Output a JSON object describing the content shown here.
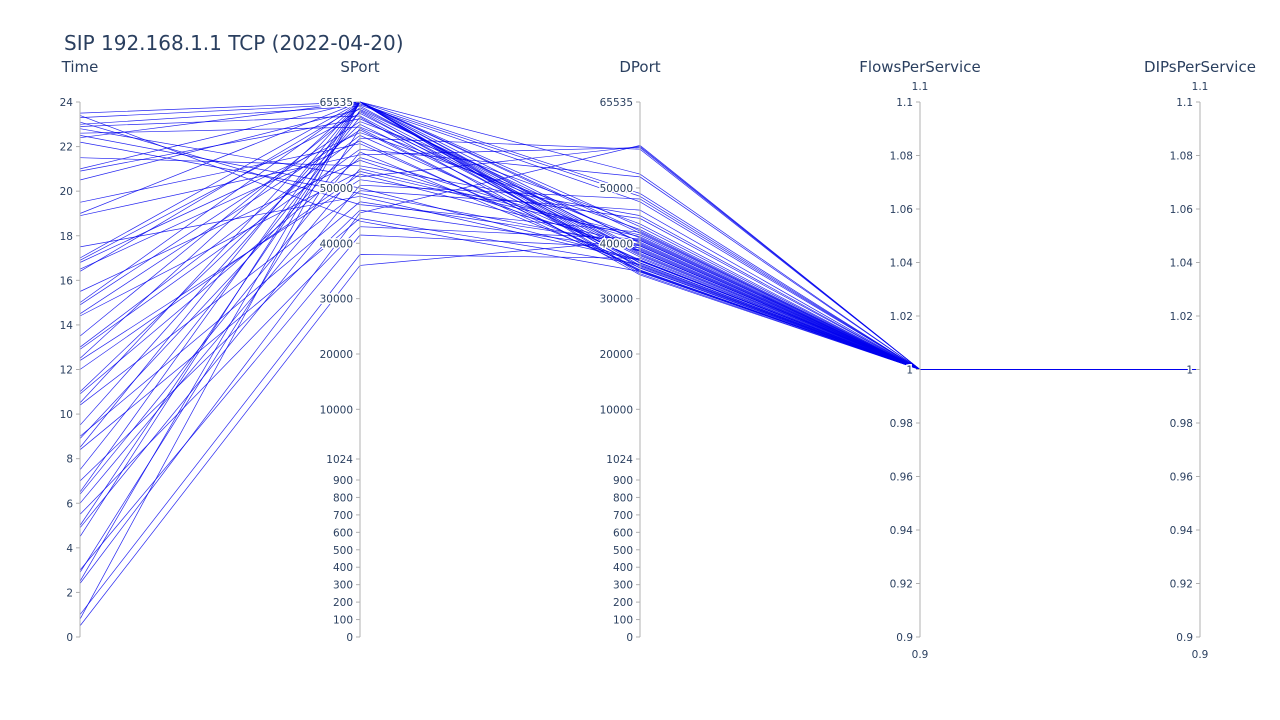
{
  "chart_data": {
    "type": "parallel_coordinates",
    "title": "SIP 192.168.1.1 TCP (2022-04-20)",
    "line_color": "#0000ee",
    "axes": [
      {
        "key": "Time",
        "label": "Time",
        "scale": "linear",
        "range": [
          0,
          24
        ],
        "ticks": [
          {
            "v": 0,
            "t": "0"
          },
          {
            "v": 2,
            "t": "2"
          },
          {
            "v": 4,
            "t": "4"
          },
          {
            "v": 6,
            "t": "6"
          },
          {
            "v": 8,
            "t": "8"
          },
          {
            "v": 10,
            "t": "10"
          },
          {
            "v": 12,
            "t": "12"
          },
          {
            "v": 14,
            "t": "14"
          },
          {
            "v": 16,
            "t": "16"
          },
          {
            "v": 18,
            "t": "18"
          },
          {
            "v": 20,
            "t": "20"
          },
          {
            "v": 22,
            "t": "22"
          },
          {
            "v": 24,
            "t": "24"
          }
        ]
      },
      {
        "key": "SPort",
        "label": "SPort",
        "scale": "port",
        "range": [
          0,
          65535
        ],
        "ticks": [
          {
            "v": 0,
            "t": "0"
          },
          {
            "v": 100,
            "t": "100"
          },
          {
            "v": 200,
            "t": "200"
          },
          {
            "v": 300,
            "t": "300"
          },
          {
            "v": 400,
            "t": "400"
          },
          {
            "v": 500,
            "t": "500"
          },
          {
            "v": 600,
            "t": "600"
          },
          {
            "v": 700,
            "t": "700"
          },
          {
            "v": 800,
            "t": "800"
          },
          {
            "v": 900,
            "t": "900"
          },
          {
            "v": 1024,
            "t": "1024"
          },
          {
            "v": 10000,
            "t": "10000"
          },
          {
            "v": 20000,
            "t": "20000"
          },
          {
            "v": 30000,
            "t": "30000"
          },
          {
            "v": 40000,
            "t": "40000"
          },
          {
            "v": 50000,
            "t": "50000"
          },
          {
            "v": 65535,
            "t": "65535"
          }
        ]
      },
      {
        "key": "DPort",
        "label": "DPort",
        "scale": "port",
        "range": [
          0,
          65535
        ],
        "ticks": [
          {
            "v": 0,
            "t": "0"
          },
          {
            "v": 100,
            "t": "100"
          },
          {
            "v": 200,
            "t": "200"
          },
          {
            "v": 300,
            "t": "300"
          },
          {
            "v": 400,
            "t": "400"
          },
          {
            "v": 500,
            "t": "500"
          },
          {
            "v": 600,
            "t": "600"
          },
          {
            "v": 700,
            "t": "700"
          },
          {
            "v": 800,
            "t": "800"
          },
          {
            "v": 900,
            "t": "900"
          },
          {
            "v": 1024,
            "t": "1024"
          },
          {
            "v": 10000,
            "t": "10000"
          },
          {
            "v": 20000,
            "t": "20000"
          },
          {
            "v": 30000,
            "t": "30000"
          },
          {
            "v": 40000,
            "t": "40000"
          },
          {
            "v": 50000,
            "t": "50000"
          },
          {
            "v": 65535,
            "t": "65535"
          }
        ]
      },
      {
        "key": "FlowsPerService",
        "label": "FlowsPerService",
        "scale": "linear",
        "range": [
          0.9,
          1.1
        ],
        "range_labels": [
          "0.9",
          "1.1"
        ],
        "ticks": [
          {
            "v": 0.9,
            "t": "0.9"
          },
          {
            "v": 0.92,
            "t": "0.92"
          },
          {
            "v": 0.94,
            "t": "0.94"
          },
          {
            "v": 0.96,
            "t": "0.96"
          },
          {
            "v": 0.98,
            "t": "0.98"
          },
          {
            "v": 1,
            "t": "1"
          },
          {
            "v": 1.02,
            "t": "1.02"
          },
          {
            "v": 1.04,
            "t": "1.04"
          },
          {
            "v": 1.06,
            "t": "1.06"
          },
          {
            "v": 1.08,
            "t": "1.08"
          },
          {
            "v": 1.1,
            "t": "1.1"
          }
        ]
      },
      {
        "key": "DIPsPerService",
        "label": "DIPsPerService",
        "scale": "linear",
        "range": [
          0.9,
          1.1
        ],
        "range_labels": [
          "0.9",
          "1.1"
        ],
        "ticks": [
          {
            "v": 0.9,
            "t": "0.9"
          },
          {
            "v": 0.92,
            "t": "0.92"
          },
          {
            "v": 0.94,
            "t": "0.94"
          },
          {
            "v": 0.96,
            "t": "0.96"
          },
          {
            "v": 0.98,
            "t": "0.98"
          },
          {
            "v": 1,
            "t": "1"
          },
          {
            "v": 1.02,
            "t": "1.02"
          },
          {
            "v": 1.04,
            "t": "1.04"
          },
          {
            "v": 1.06,
            "t": "1.06"
          },
          {
            "v": 1.08,
            "t": "1.08"
          },
          {
            "v": 1.1,
            "t": "1.1"
          }
        ]
      }
    ],
    "records": [
      [
        23.5,
        65535,
        52500,
        1,
        1
      ],
      [
        23.3,
        65200,
        48500,
        1,
        1
      ],
      [
        23.0,
        64800,
        38000,
        1,
        1
      ],
      [
        22.8,
        52000,
        57500,
        1,
        1
      ],
      [
        22.6,
        61000,
        41000,
        1,
        1
      ],
      [
        22.5,
        50000,
        37000,
        1,
        1
      ],
      [
        22.4,
        65535,
        35500,
        1,
        1
      ],
      [
        22.2,
        49000,
        39500,
        1,
        1
      ],
      [
        23.1,
        47000,
        42000,
        1,
        1
      ],
      [
        22.9,
        63000,
        36500,
        1,
        1
      ],
      [
        21.0,
        65535,
        49000,
        1,
        1
      ],
      [
        20.9,
        62500,
        38500,
        1,
        1
      ],
      [
        20.5,
        64200,
        40200,
        1,
        1
      ],
      [
        19.5,
        58000,
        36000,
        1,
        1
      ],
      [
        19.0,
        65535,
        34500,
        1,
        1
      ],
      [
        18.9,
        56000,
        57300,
        1,
        1
      ],
      [
        17.0,
        65535,
        40000,
        1,
        1
      ],
      [
        16.9,
        63500,
        37500,
        1,
        1
      ],
      [
        16.8,
        60000,
        42500,
        1,
        1
      ],
      [
        16.5,
        58500,
        35000,
        1,
        1
      ],
      [
        16.4,
        65000,
        47500,
        1,
        1
      ],
      [
        15.5,
        55000,
        38500,
        1,
        1
      ],
      [
        15.0,
        65535,
        36000,
        1,
        1
      ],
      [
        14.9,
        62000,
        43500,
        1,
        1
      ],
      [
        14.5,
        60500,
        35200,
        1,
        1
      ],
      [
        14.4,
        53000,
        41200,
        1,
        1
      ],
      [
        13.5,
        64500,
        39000,
        1,
        1
      ],
      [
        13.0,
        59500,
        37000,
        1,
        1
      ],
      [
        12.9,
        57000,
        52000,
        1,
        1
      ],
      [
        12.5,
        65535,
        34800,
        1,
        1
      ],
      [
        12.4,
        51500,
        44500,
        1,
        1
      ],
      [
        11.0,
        61500,
        36800,
        1,
        1
      ],
      [
        10.9,
        55500,
        40500,
        1,
        1
      ],
      [
        10.5,
        65535,
        38200,
        1,
        1
      ],
      [
        10.4,
        49500,
        46000,
        1,
        1
      ],
      [
        9.5,
        63800,
        35800,
        1,
        1
      ],
      [
        9.0,
        47500,
        39800,
        1,
        1
      ],
      [
        8.9,
        59000,
        57000,
        1,
        1
      ],
      [
        8.5,
        65535,
        41800,
        1,
        1
      ],
      [
        8.4,
        44500,
        36200,
        1,
        1
      ],
      [
        7.5,
        62800,
        34300,
        1,
        1
      ],
      [
        7.0,
        46000,
        38800,
        1,
        1
      ],
      [
        6.5,
        65535,
        43000,
        1,
        1
      ],
      [
        6.4,
        56500,
        35600,
        1,
        1
      ],
      [
        5.5,
        43000,
        40800,
        1,
        1
      ],
      [
        5.0,
        64000,
        37800,
        1,
        1
      ],
      [
        4.9,
        50500,
        48000,
        1,
        1
      ],
      [
        4.5,
        65535,
        36400,
        1,
        1
      ],
      [
        3.0,
        41500,
        39200,
        1,
        1
      ],
      [
        2.9,
        60800,
        35100,
        1,
        1
      ],
      [
        2.5,
        65535,
        42200,
        1,
        1
      ],
      [
        2.4,
        45500,
        57700,
        1,
        1
      ],
      [
        1.0,
        38000,
        37300,
        1,
        1
      ],
      [
        0.5,
        36000,
        40600,
        1,
        1
      ],
      [
        23.4,
        44000,
        34900,
        1,
        1
      ],
      [
        21.5,
        54000,
        45000,
        1,
        1
      ],
      [
        17.5,
        48500,
        36900,
        1,
        1
      ],
      [
        12.0,
        52500,
        39600,
        1,
        1
      ],
      [
        6.0,
        53500,
        41500,
        1,
        1
      ],
      [
        0.8,
        65535,
        38600,
        1,
        1
      ]
    ]
  }
}
